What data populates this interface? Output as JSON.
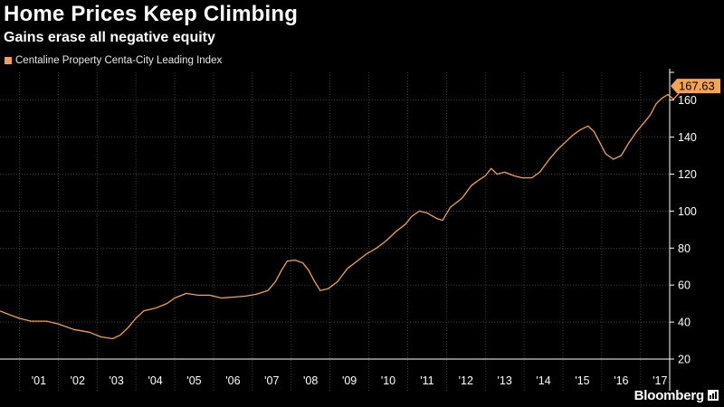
{
  "header": {
    "title": "Home Prices Keep Climbing",
    "subtitle": "Gains erase all negative equity"
  },
  "brand": {
    "name": "Bloomberg",
    "icon": "bloomberg-bar-icon"
  },
  "colors": {
    "series": "#f5a04a",
    "background": "#000000",
    "grid": "#555555",
    "last_label_bg": "#f7a450"
  },
  "chart_data": {
    "type": "line",
    "legend_placement": "top-left",
    "grid": true,
    "y_axis_side": "right",
    "ylim": [
      20,
      175
    ],
    "yticks": [
      20,
      40,
      60,
      80,
      100,
      120,
      140,
      160
    ],
    "xlim": [
      2000.5,
      2017.75
    ],
    "xtick_labels": [
      "'01",
      "'02",
      "'03",
      "'04",
      "'05",
      "'06",
      "'07",
      "'08",
      "'09",
      "'10",
      "'11",
      "'12",
      "'13",
      "'14",
      "'15",
      "'16",
      "'17"
    ],
    "last_value_label": "167.63",
    "series": [
      {
        "name": "Centaline Property Centa-City Leading Index",
        "points": [
          [
            2000.5,
            46
          ],
          [
            2000.8,
            43.5
          ],
          [
            2001.0,
            42
          ],
          [
            2001.3,
            40.5
          ],
          [
            2001.7,
            40.5
          ],
          [
            2002.0,
            39
          ],
          [
            2002.4,
            36
          ],
          [
            2002.8,
            34.5
          ],
          [
            2003.1,
            32
          ],
          [
            2003.4,
            31
          ],
          [
            2003.6,
            33
          ],
          [
            2003.8,
            37
          ],
          [
            2004.0,
            42
          ],
          [
            2004.2,
            46
          ],
          [
            2004.5,
            47.5
          ],
          [
            2004.8,
            50
          ],
          [
            2005.0,
            53
          ],
          [
            2005.3,
            55.5
          ],
          [
            2005.6,
            54.5
          ],
          [
            2005.9,
            54.5
          ],
          [
            2006.2,
            53
          ],
          [
            2006.5,
            53.5
          ],
          [
            2006.8,
            54
          ],
          [
            2007.1,
            55
          ],
          [
            2007.4,
            57
          ],
          [
            2007.6,
            62
          ],
          [
            2007.75,
            68
          ],
          [
            2007.9,
            73
          ],
          [
            2008.1,
            73.5
          ],
          [
            2008.3,
            72
          ],
          [
            2008.45,
            68
          ],
          [
            2008.6,
            62
          ],
          [
            2008.75,
            57
          ],
          [
            2008.95,
            58
          ],
          [
            2009.2,
            62
          ],
          [
            2009.45,
            69
          ],
          [
            2009.7,
            73
          ],
          [
            2009.95,
            77
          ],
          [
            2010.2,
            80
          ],
          [
            2010.45,
            84
          ],
          [
            2010.7,
            89
          ],
          [
            2010.95,
            93
          ],
          [
            2011.1,
            97
          ],
          [
            2011.3,
            100
          ],
          [
            2011.5,
            99
          ],
          [
            2011.75,
            96
          ],
          [
            2011.9,
            95
          ],
          [
            2012.1,
            102
          ],
          [
            2012.4,
            107
          ],
          [
            2012.65,
            114
          ],
          [
            2012.85,
            117
          ],
          [
            2013.0,
            119
          ],
          [
            2013.15,
            123
          ],
          [
            2013.3,
            120
          ],
          [
            2013.5,
            121
          ],
          [
            2013.75,
            119
          ],
          [
            2013.95,
            118
          ],
          [
            2014.2,
            118
          ],
          [
            2014.4,
            121
          ],
          [
            2014.65,
            128
          ],
          [
            2014.85,
            133
          ],
          [
            2015.05,
            137
          ],
          [
            2015.25,
            141
          ],
          [
            2015.45,
            144
          ],
          [
            2015.65,
            146
          ],
          [
            2015.8,
            143
          ],
          [
            2015.95,
            137
          ],
          [
            2016.1,
            131
          ],
          [
            2016.3,
            128
          ],
          [
            2016.5,
            130
          ],
          [
            2016.7,
            137
          ],
          [
            2016.9,
            143
          ],
          [
            2017.1,
            148
          ],
          [
            2017.25,
            152
          ],
          [
            2017.4,
            158
          ],
          [
            2017.55,
            161
          ],
          [
            2017.7,
            163
          ],
          [
            2017.85,
            160.5
          ],
          [
            2018.0,
            164
          ],
          [
            2018.1,
            167.63
          ]
        ]
      }
    ]
  }
}
